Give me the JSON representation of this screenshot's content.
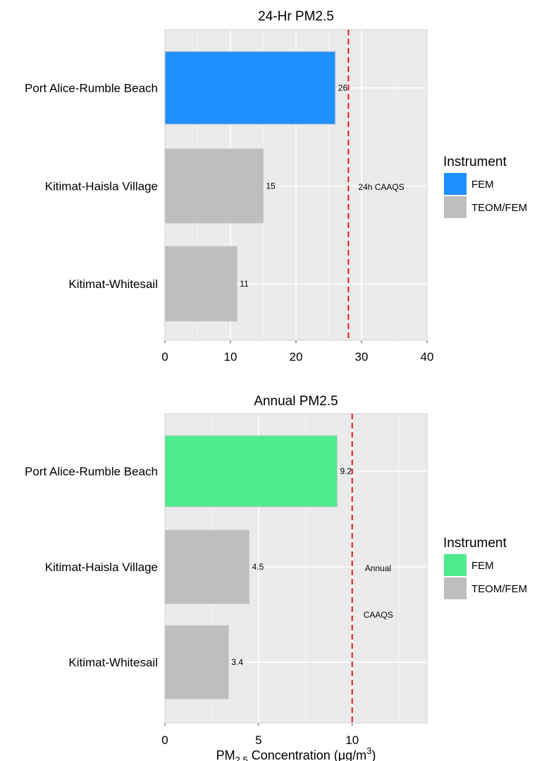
{
  "chart_data": [
    {
      "type": "bar",
      "orientation": "horizontal",
      "title": "24-Hr PM2.5",
      "categories": [
        "Port Alice-Rumble Beach",
        "Kitimat-Haisla Village",
        "Kitimat-Whitesail"
      ],
      "values": [
        26,
        15,
        11
      ],
      "value_labels": [
        "26",
        "15",
        "11"
      ],
      "instrument": [
        "FEM",
        "TEOM/FEM",
        "TEOM/FEM"
      ],
      "xlim": [
        0,
        40
      ],
      "xticks": [
        0,
        10,
        20,
        30,
        40
      ],
      "xtick_labels": [
        "0",
        "10",
        "20",
        "30",
        "40"
      ],
      "reference_line": {
        "value": 28,
        "label_lines": [
          "24h CAAQS"
        ],
        "color": "#e31a1c"
      },
      "legend": {
        "title": "Instrument",
        "placement": "right",
        "entries": [
          {
            "label": "FEM",
            "color": "#1e90ff"
          },
          {
            "label": "TEOM/FEM",
            "color": "#bebebe"
          }
        ]
      },
      "xlabel": "",
      "grid": true
    },
    {
      "type": "bar",
      "orientation": "horizontal",
      "title": "Annual PM2.5",
      "categories": [
        "Port Alice-Rumble Beach",
        "Kitimat-Haisla Village",
        "Kitimat-Whitesail"
      ],
      "values": [
        9.2,
        4.5,
        3.4
      ],
      "value_labels": [
        "9.2",
        "4.5",
        "3.4"
      ],
      "instrument": [
        "FEM",
        "TEOM/FEM",
        "TEOM/FEM"
      ],
      "xlim": [
        0,
        14
      ],
      "xticks": [
        0,
        5,
        10
      ],
      "xtick_labels": [
        "0",
        "5",
        "10"
      ],
      "reference_line": {
        "value": 10,
        "label_lines": [
          "Annual",
          "CAAQS"
        ],
        "color": "#e31a1c"
      },
      "legend": {
        "title": "Instrument",
        "placement": "right",
        "entries": [
          {
            "label": "FEM",
            "color": "#4eeb8f"
          },
          {
            "label": "TEOM/FEM",
            "color": "#bebebe"
          }
        ]
      },
      "xlabel": "PM2.5 Concentration (μg/m3)",
      "grid": true
    }
  ]
}
